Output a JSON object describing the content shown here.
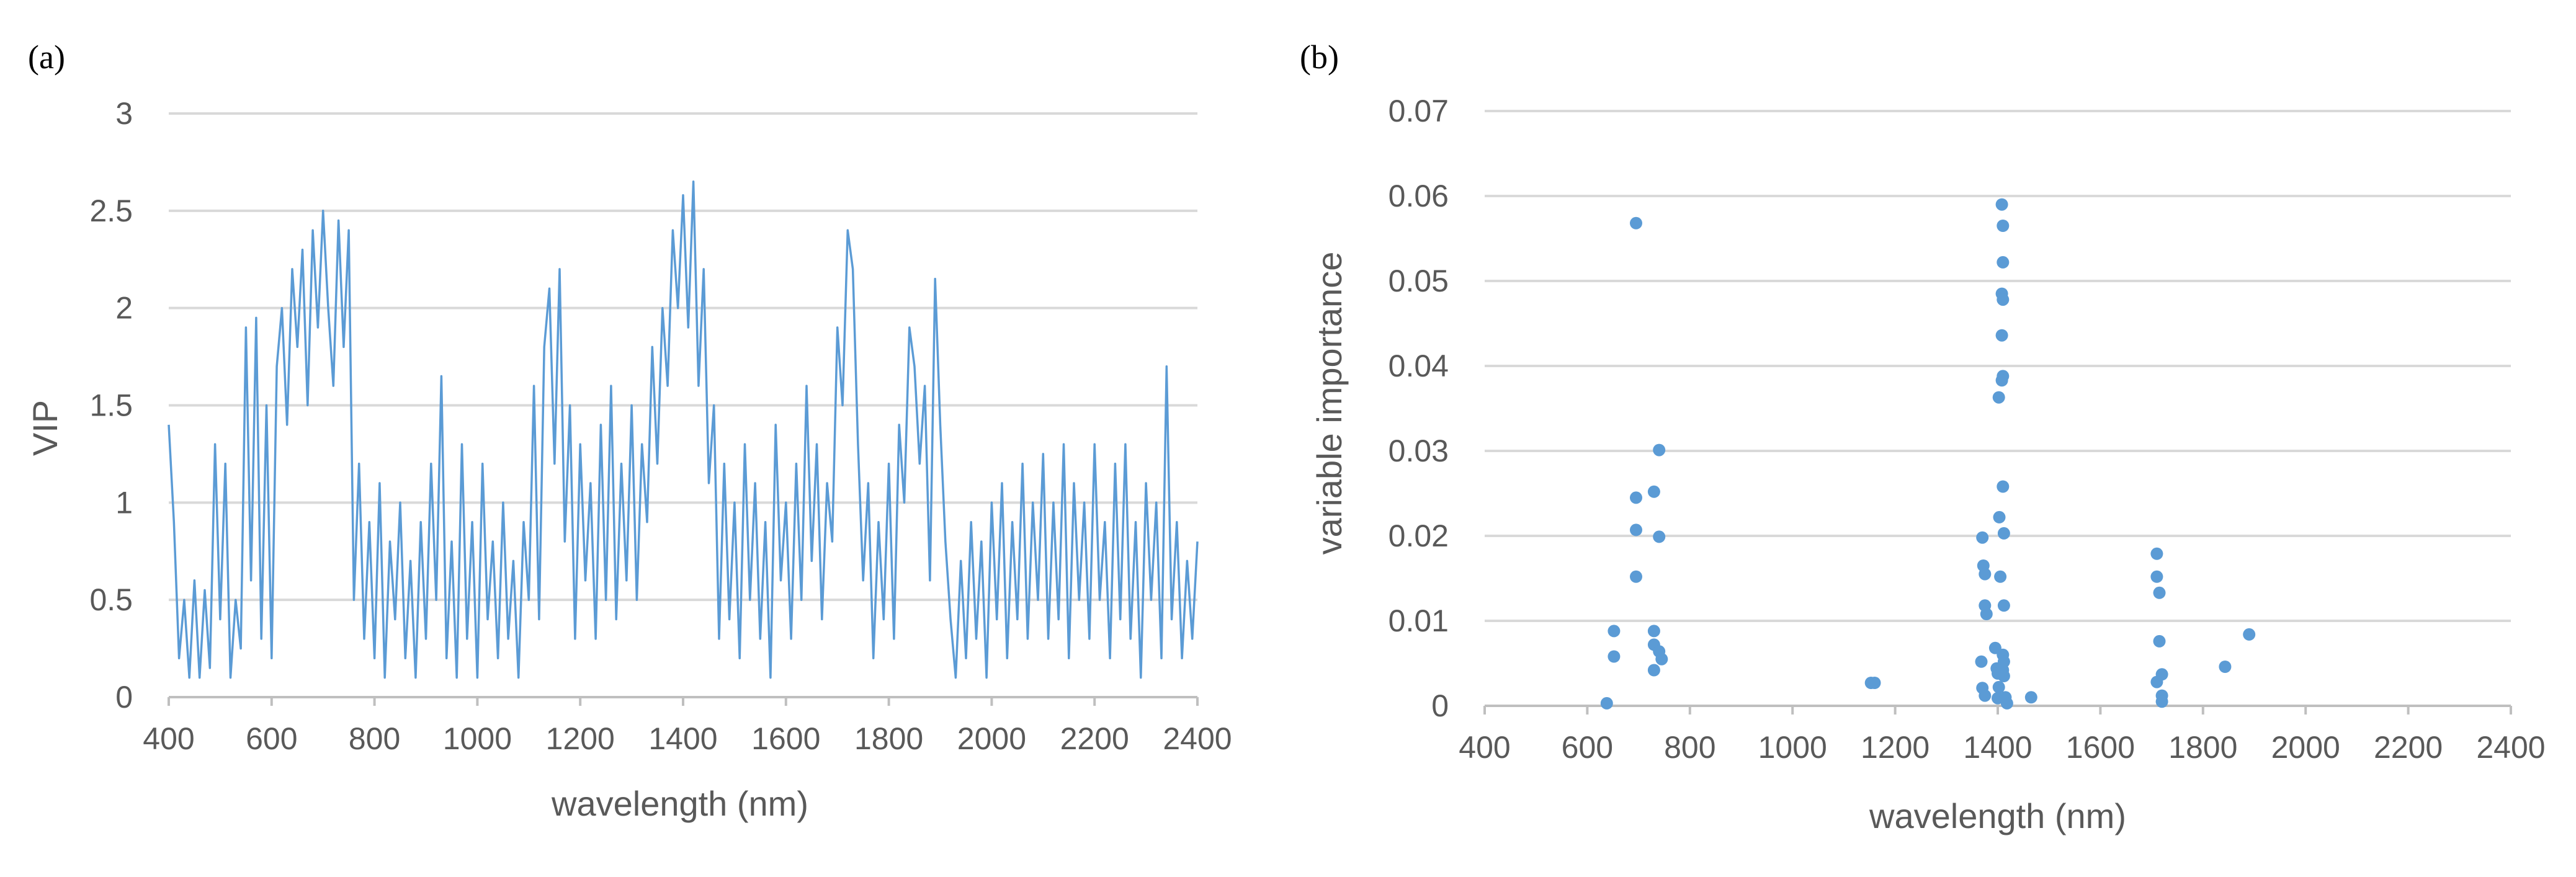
{
  "panels": {
    "a_label": "(a)",
    "b_label": "(b)"
  },
  "chart_data": [
    {
      "panel": "(a)",
      "type": "line",
      "xlabel": "wavelength (nm)",
      "ylabel": "VIP",
      "xlim": [
        400,
        2400
      ],
      "ylim": [
        0,
        3
      ],
      "xticks": [
        "400",
        "600",
        "800",
        "1000",
        "1200",
        "1400",
        "1600",
        "1800",
        "2000",
        "2200",
        "2400"
      ],
      "yticks": [
        "0",
        "0.5",
        "1",
        "1.5",
        "2",
        "2.5",
        "3"
      ],
      "grid": true,
      "color": "#5b9bd5",
      "series_points": [
        [
          400,
          1.4
        ],
        [
          410,
          0.9
        ],
        [
          420,
          0.2
        ],
        [
          430,
          0.5
        ],
        [
          440,
          0.1
        ],
        [
          450,
          0.6
        ],
        [
          460,
          0.1
        ],
        [
          470,
          0.55
        ],
        [
          480,
          0.15
        ],
        [
          490,
          1.3
        ],
        [
          500,
          0.4
        ],
        [
          510,
          1.2
        ],
        [
          520,
          0.1
        ],
        [
          530,
          0.5
        ],
        [
          540,
          0.25
        ],
        [
          550,
          1.9
        ],
        [
          560,
          0.6
        ],
        [
          570,
          1.95
        ],
        [
          580,
          0.3
        ],
        [
          590,
          1.5
        ],
        [
          600,
          0.2
        ],
        [
          610,
          1.7
        ],
        [
          620,
          2.0
        ],
        [
          630,
          1.4
        ],
        [
          640,
          2.2
        ],
        [
          650,
          1.8
        ],
        [
          660,
          2.3
        ],
        [
          670,
          1.5
        ],
        [
          680,
          2.4
        ],
        [
          690,
          1.9
        ],
        [
          700,
          2.5
        ],
        [
          710,
          2.0
        ],
        [
          720,
          1.6
        ],
        [
          730,
          2.45
        ],
        [
          740,
          1.8
        ],
        [
          750,
          2.4
        ],
        [
          760,
          0.5
        ],
        [
          770,
          1.2
        ],
        [
          780,
          0.3
        ],
        [
          790,
          0.9
        ],
        [
          800,
          0.2
        ],
        [
          810,
          1.1
        ],
        [
          820,
          0.1
        ],
        [
          830,
          0.8
        ],
        [
          840,
          0.4
        ],
        [
          850,
          1.0
        ],
        [
          860,
          0.2
        ],
        [
          870,
          0.7
        ],
        [
          880,
          0.1
        ],
        [
          890,
          0.9
        ],
        [
          900,
          0.3
        ],
        [
          910,
          1.2
        ],
        [
          920,
          0.5
        ],
        [
          930,
          1.65
        ],
        [
          940,
          0.2
        ],
        [
          950,
          0.8
        ],
        [
          960,
          0.1
        ],
        [
          970,
          1.3
        ],
        [
          980,
          0.3
        ],
        [
          990,
          0.9
        ],
        [
          1000,
          0.1
        ],
        [
          1010,
          1.2
        ],
        [
          1020,
          0.4
        ],
        [
          1030,
          0.8
        ],
        [
          1040,
          0.2
        ],
        [
          1050,
          1.0
        ],
        [
          1060,
          0.3
        ],
        [
          1070,
          0.7
        ],
        [
          1080,
          0.1
        ],
        [
          1090,
          0.9
        ],
        [
          1100,
          0.5
        ],
        [
          1110,
          1.6
        ],
        [
          1120,
          0.4
        ],
        [
          1130,
          1.8
        ],
        [
          1140,
          2.1
        ],
        [
          1150,
          1.2
        ],
        [
          1160,
          2.2
        ],
        [
          1170,
          0.8
        ],
        [
          1180,
          1.5
        ],
        [
          1190,
          0.3
        ],
        [
          1200,
          1.3
        ],
        [
          1210,
          0.6
        ],
        [
          1220,
          1.1
        ],
        [
          1230,
          0.3
        ],
        [
          1240,
          1.4
        ],
        [
          1250,
          0.5
        ],
        [
          1260,
          1.6
        ],
        [
          1270,
          0.4
        ],
        [
          1280,
          1.2
        ],
        [
          1290,
          0.6
        ],
        [
          1300,
          1.5
        ],
        [
          1310,
          0.5
        ],
        [
          1320,
          1.3
        ],
        [
          1330,
          0.9
        ],
        [
          1340,
          1.8
        ],
        [
          1350,
          1.2
        ],
        [
          1360,
          2.0
        ],
        [
          1370,
          1.6
        ],
        [
          1380,
          2.4
        ],
        [
          1390,
          2.0
        ],
        [
          1400,
          2.58
        ],
        [
          1410,
          1.9
        ],
        [
          1420,
          2.65
        ],
        [
          1430,
          1.6
        ],
        [
          1440,
          2.2
        ],
        [
          1450,
          1.1
        ],
        [
          1460,
          1.5
        ],
        [
          1470,
          0.3
        ],
        [
          1480,
          1.2
        ],
        [
          1490,
          0.4
        ],
        [
          1500,
          1.0
        ],
        [
          1510,
          0.2
        ],
        [
          1520,
          1.3
        ],
        [
          1530,
          0.5
        ],
        [
          1540,
          1.1
        ],
        [
          1550,
          0.3
        ],
        [
          1560,
          0.9
        ],
        [
          1570,
          0.1
        ],
        [
          1580,
          1.4
        ],
        [
          1590,
          0.6
        ],
        [
          1600,
          1.0
        ],
        [
          1610,
          0.3
        ],
        [
          1620,
          1.2
        ],
        [
          1630,
          0.5
        ],
        [
          1640,
          1.6
        ],
        [
          1650,
          0.7
        ],
        [
          1660,
          1.3
        ],
        [
          1670,
          0.4
        ],
        [
          1680,
          1.1
        ],
        [
          1690,
          0.8
        ],
        [
          1700,
          1.9
        ],
        [
          1710,
          1.5
        ],
        [
          1720,
          2.4
        ],
        [
          1730,
          2.2
        ],
        [
          1740,
          1.3
        ],
        [
          1750,
          0.6
        ],
        [
          1760,
          1.1
        ],
        [
          1770,
          0.2
        ],
        [
          1780,
          0.9
        ],
        [
          1790,
          0.4
        ],
        [
          1800,
          1.2
        ],
        [
          1810,
          0.3
        ],
        [
          1820,
          1.4
        ],
        [
          1830,
          1.0
        ],
        [
          1840,
          1.9
        ],
        [
          1850,
          1.7
        ],
        [
          1860,
          1.2
        ],
        [
          1870,
          1.6
        ],
        [
          1880,
          0.6
        ],
        [
          1890,
          2.15
        ],
        [
          1900,
          1.4
        ],
        [
          1910,
          0.8
        ],
        [
          1920,
          0.4
        ],
        [
          1930,
          0.1
        ],
        [
          1940,
          0.7
        ],
        [
          1950,
          0.2
        ],
        [
          1960,
          0.9
        ],
        [
          1970,
          0.3
        ],
        [
          1980,
          0.8
        ],
        [
          1990,
          0.1
        ],
        [
          2000,
          1.0
        ],
        [
          2010,
          0.4
        ],
        [
          2020,
          1.1
        ],
        [
          2030,
          0.2
        ],
        [
          2040,
          0.9
        ],
        [
          2050,
          0.4
        ],
        [
          2060,
          1.2
        ],
        [
          2070,
          0.3
        ],
        [
          2080,
          1.0
        ],
        [
          2090,
          0.5
        ],
        [
          2100,
          1.25
        ],
        [
          2110,
          0.3
        ],
        [
          2120,
          1.0
        ],
        [
          2130,
          0.4
        ],
        [
          2140,
          1.3
        ],
        [
          2150,
          0.2
        ],
        [
          2160,
          1.1
        ],
        [
          2170,
          0.5
        ],
        [
          2180,
          1.0
        ],
        [
          2190,
          0.3
        ],
        [
          2200,
          1.3
        ],
        [
          2210,
          0.5
        ],
        [
          2220,
          0.9
        ],
        [
          2230,
          0.2
        ],
        [
          2240,
          1.2
        ],
        [
          2250,
          0.4
        ],
        [
          2260,
          1.3
        ],
        [
          2270,
          0.3
        ],
        [
          2280,
          0.9
        ],
        [
          2290,
          0.1
        ],
        [
          2300,
          1.1
        ],
        [
          2310,
          0.5
        ],
        [
          2320,
          1.0
        ],
        [
          2330,
          0.2
        ],
        [
          2340,
          1.7
        ],
        [
          2350,
          0.4
        ],
        [
          2360,
          0.9
        ],
        [
          2370,
          0.2
        ],
        [
          2380,
          0.7
        ],
        [
          2390,
          0.3
        ],
        [
          2400,
          0.8
        ]
      ]
    },
    {
      "panel": "(b)",
      "type": "scatter",
      "xlabel": "wavelength (nm)",
      "ylabel": "variable importance",
      "xlim": [
        400,
        2400
      ],
      "ylim": [
        0,
        0.07
      ],
      "xticks": [
        "400",
        "600",
        "800",
        "1000",
        "1200",
        "1400",
        "1600",
        "1800",
        "2000",
        "2200",
        "2400"
      ],
      "yticks": [
        "0",
        "0.01",
        "0.02",
        "0.03",
        "0.04",
        "0.05",
        "0.06",
        "0.07"
      ],
      "grid": true,
      "color": "#5b9bd5",
      "points": [
        [
          638,
          0.0003
        ],
        [
          652,
          0.0088
        ],
        [
          652,
          0.0058
        ],
        [
          695,
          0.0568
        ],
        [
          695,
          0.0245
        ],
        [
          695,
          0.0207
        ],
        [
          695,
          0.0152
        ],
        [
          730,
          0.0252
        ],
        [
          730,
          0.0088
        ],
        [
          730,
          0.0072
        ],
        [
          730,
          0.0042
        ],
        [
          740,
          0.0301
        ],
        [
          740,
          0.0199
        ],
        [
          740,
          0.0064
        ],
        [
          745,
          0.0055
        ],
        [
          1153,
          0.0027
        ],
        [
          1160,
          0.0027
        ],
        [
          1370,
          0.0198
        ],
        [
          1372,
          0.0165
        ],
        [
          1375,
          0.0155
        ],
        [
          1375,
          0.0118
        ],
        [
          1378,
          0.0108
        ],
        [
          1368,
          0.0052
        ],
        [
          1370,
          0.0021
        ],
        [
          1375,
          0.0012
        ],
        [
          1395,
          0.0068
        ],
        [
          1398,
          0.0044
        ],
        [
          1400,
          0.0038
        ],
        [
          1402,
          0.0022
        ],
        [
          1400,
          0.0009
        ],
        [
          1408,
          0.059
        ],
        [
          1410,
          0.0565
        ],
        [
          1410,
          0.0522
        ],
        [
          1408,
          0.0485
        ],
        [
          1410,
          0.0478
        ],
        [
          1408,
          0.0436
        ],
        [
          1410,
          0.0388
        ],
        [
          1408,
          0.0383
        ],
        [
          1402,
          0.0363
        ],
        [
          1410,
          0.0258
        ],
        [
          1403,
          0.0222
        ],
        [
          1412,
          0.0203
        ],
        [
          1405,
          0.0152
        ],
        [
          1412,
          0.0118
        ],
        [
          1410,
          0.006
        ],
        [
          1412,
          0.0052
        ],
        [
          1410,
          0.0042
        ],
        [
          1412,
          0.0035
        ],
        [
          1415,
          0.001
        ],
        [
          1418,
          0.0003
        ],
        [
          1465,
          0.001
        ],
        [
          1710,
          0.0179
        ],
        [
          1710,
          0.0152
        ],
        [
          1715,
          0.0133
        ],
        [
          1715,
          0.0076
        ],
        [
          1720,
          0.0037
        ],
        [
          1710,
          0.0028
        ],
        [
          1720,
          0.0012
        ],
        [
          1720,
          0.0005
        ],
        [
          1843,
          0.0046
        ],
        [
          1890,
          0.0084
        ]
      ]
    }
  ]
}
